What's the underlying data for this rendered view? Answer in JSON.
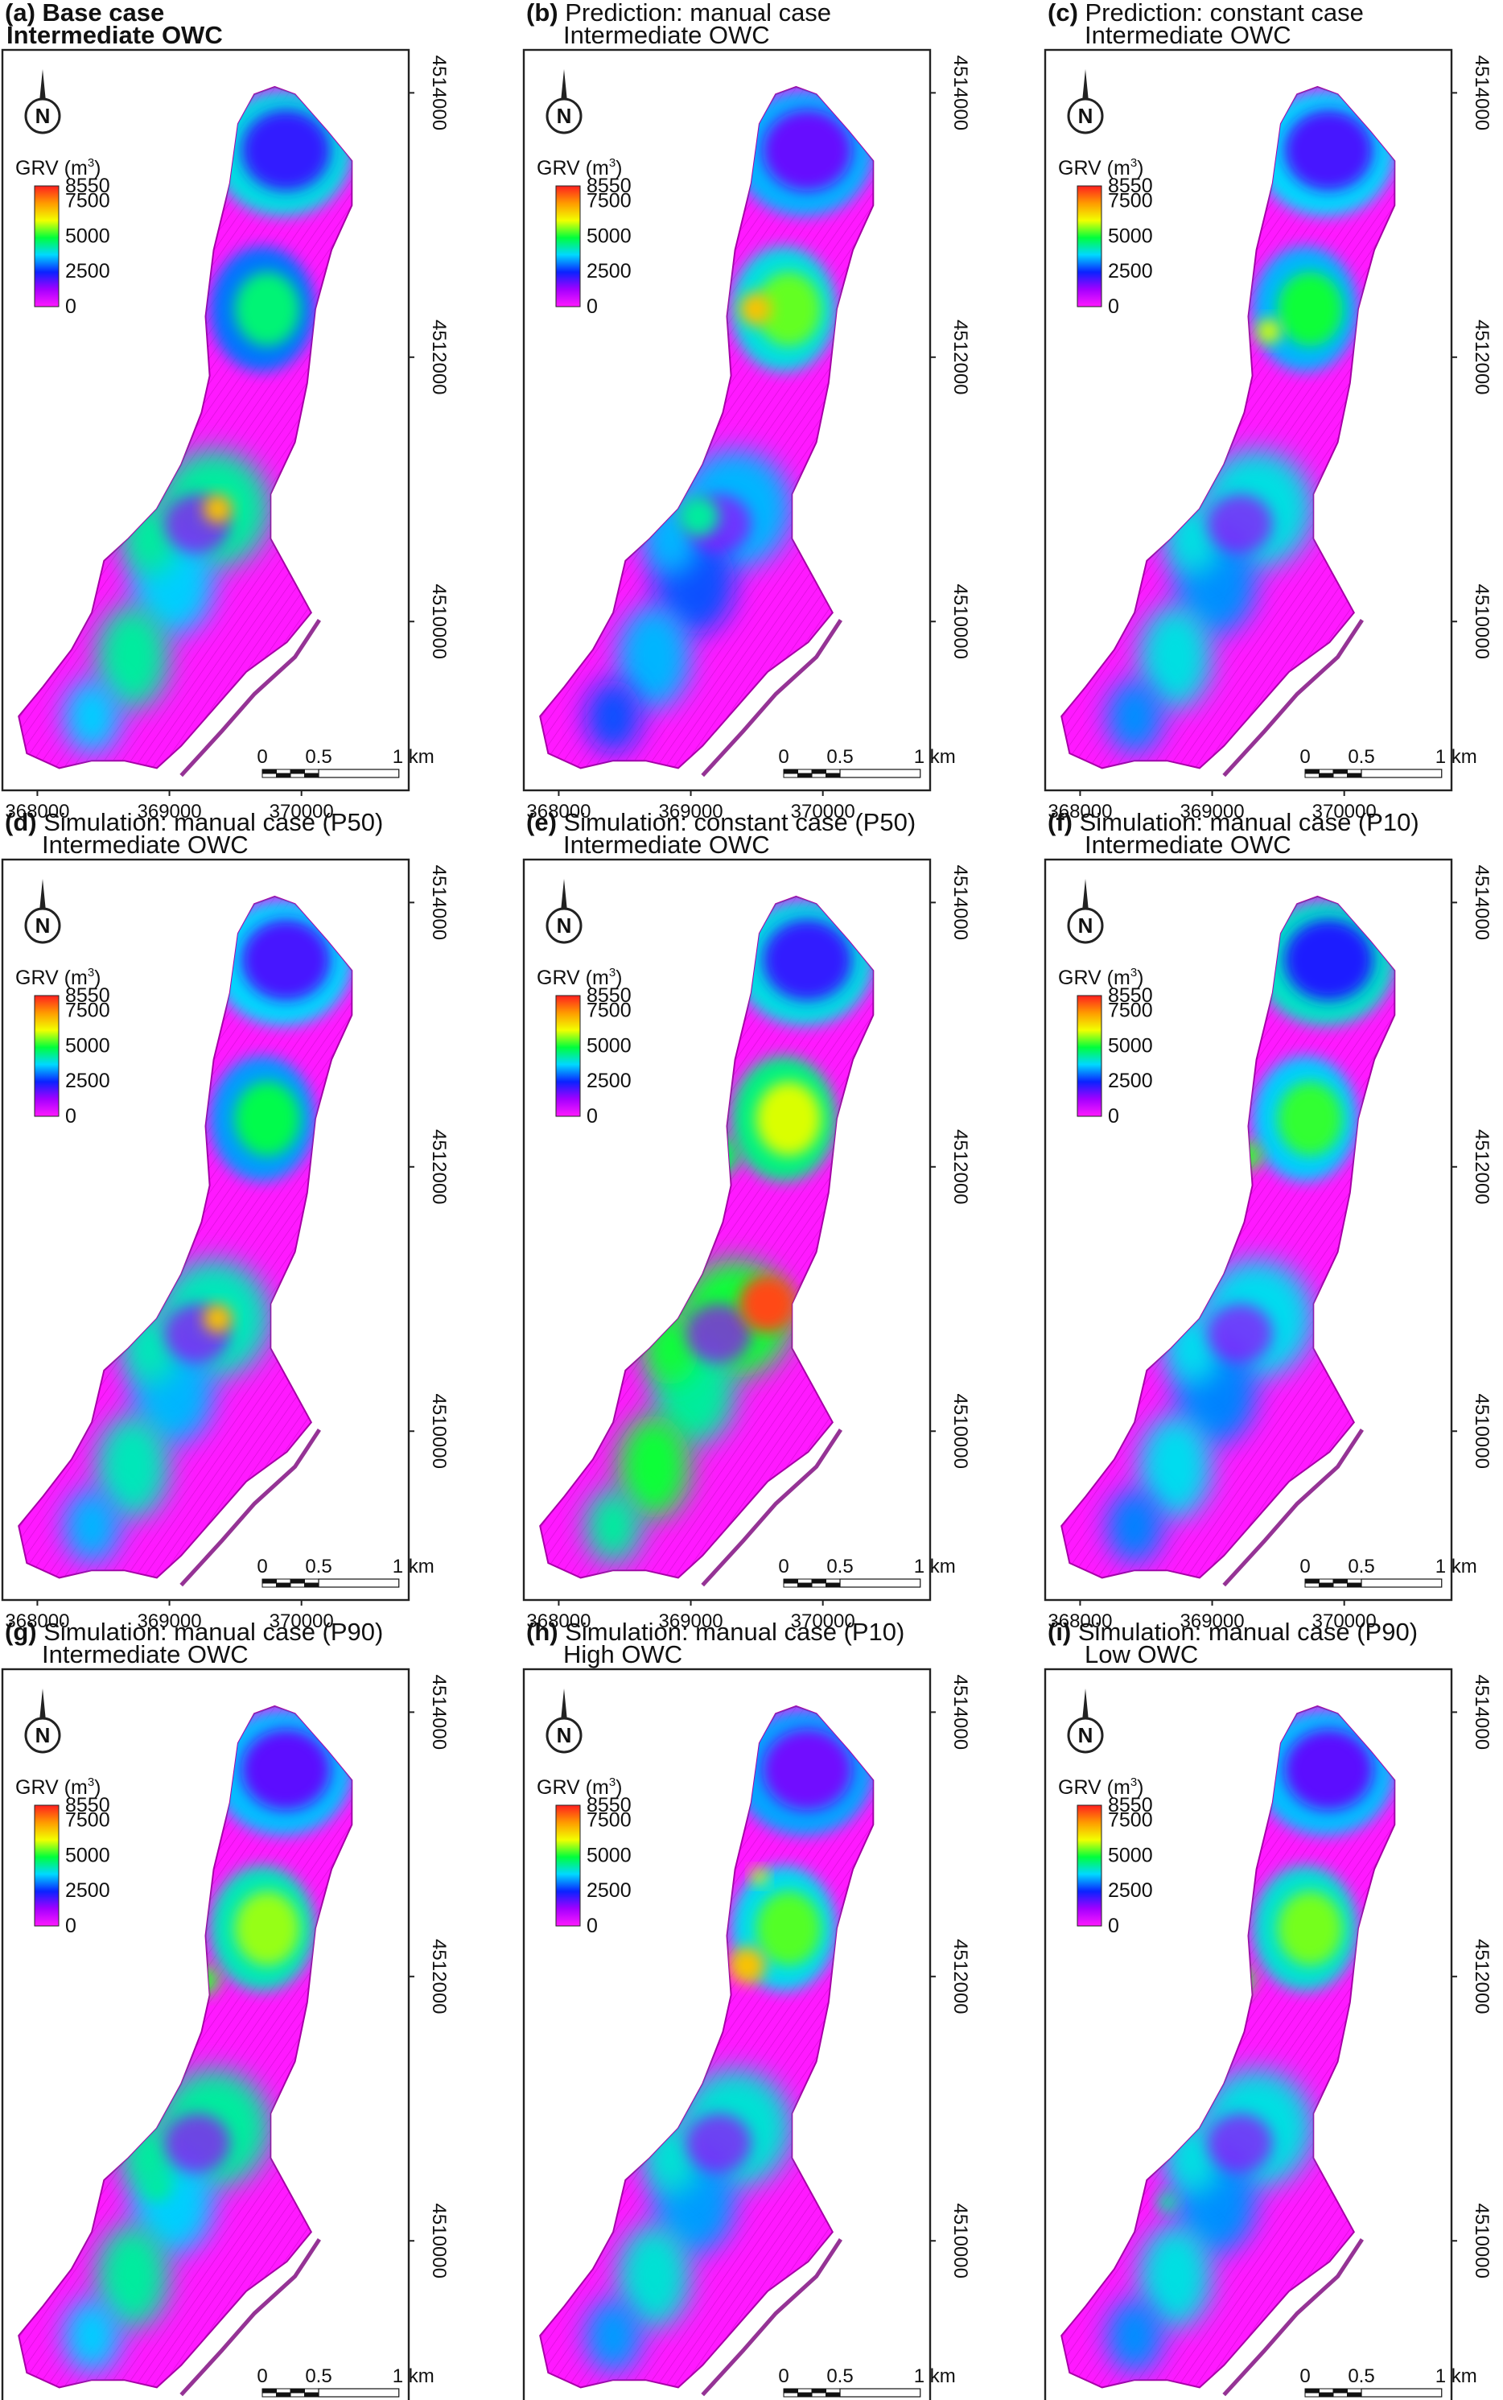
{
  "figure": {
    "legend": {
      "title": "GRV (m",
      "title_sup": "3",
      "title_close": ")",
      "ticks": [
        8550,
        7500,
        5000,
        2500,
        0
      ],
      "colors": [
        "#ff1f1f",
        "#ff9a00",
        "#f2ff00",
        "#00ff3c",
        "#00d9ff",
        "#0a23ff",
        "#a300ff",
        "#ff19ff"
      ]
    },
    "x_ticks": [
      "368000",
      "369000",
      "370000"
    ],
    "y_ticks": [
      "4514000",
      "4512000",
      "4510000"
    ],
    "scalebar": {
      "labels": [
        "0",
        "0.5",
        "1 km"
      ]
    },
    "north": "N",
    "colors": {
      "background_field": "#ff19ff",
      "field_edge": "#a700a7"
    }
  },
  "panels": [
    {
      "id": "a",
      "letter": "(a)",
      "line1": "Base case",
      "line2": "Intermediate OWC",
      "bold_all": true,
      "bodies": {
        "north": 0.3,
        "mid": 0.45,
        "south": 0.5
      },
      "spots": [
        [
          0.13,
          0.76,
          0.09,
          0.6
        ],
        [
          0.53,
          0.62,
          0.07,
          0.8
        ]
      ]
    },
    {
      "id": "b",
      "letter": "(b)",
      "line1": "Prediction: manual case",
      "line2": "Intermediate OWC",
      "bold_all": false,
      "bodies": {
        "north": 0.25,
        "mid": 0.55,
        "south": 0.4
      },
      "spots": [
        [
          0.57,
          0.35,
          0.08,
          0.8
        ],
        [
          0.43,
          0.63,
          0.1,
          0.5
        ]
      ]
    },
    {
      "id": "c",
      "letter": "(c)",
      "line1": "Prediction: constant case",
      "line2": "Intermediate OWC",
      "bold_all": false,
      "bodies": {
        "north": 0.28,
        "mid": 0.5,
        "south": 0.45
      },
      "spots": [
        [
          0.55,
          0.38,
          0.06,
          0.7
        ],
        [
          0.35,
          0.33,
          0.05,
          0.5
        ]
      ]
    },
    {
      "id": "d",
      "letter": "(d)",
      "line1": "Simulation: manual case (P50)",
      "line2": "Intermediate OWC",
      "bold_all": false,
      "bodies": {
        "north": 0.28,
        "mid": 0.48,
        "south": 0.48
      },
      "spots": [
        [
          0.13,
          0.76,
          0.09,
          0.6
        ],
        [
          0.53,
          0.62,
          0.07,
          0.8
        ]
      ]
    },
    {
      "id": "e",
      "letter": "(e)",
      "line1": "Simulation: constant case (P50)",
      "line2": "Intermediate OWC",
      "bold_all": false,
      "bodies": {
        "north": 0.3,
        "mid": 0.62,
        "south": 0.58
      },
      "spots": [
        [
          0.6,
          0.6,
          0.14,
          0.95
        ],
        [
          0.48,
          0.4,
          0.1,
          0.55
        ]
      ]
    },
    {
      "id": "f",
      "letter": "(f)",
      "line1": "Simulation: manual case (P10)",
      "line2": "Intermediate OWC",
      "bold_all": false,
      "bodies": {
        "north": 0.32,
        "mid": 0.52,
        "south": 0.44
      },
      "spots": [
        [
          0.5,
          0.4,
          0.07,
          0.6
        ],
        [
          0.36,
          0.22,
          0.06,
          0.6
        ]
      ]
    },
    {
      "id": "g",
      "letter": "(g)",
      "line1": "Simulation: manual case (P90)",
      "line2": "Intermediate OWC",
      "bold_all": false,
      "bodies": {
        "north": 0.26,
        "mid": 0.58,
        "south": 0.5
      },
      "spots": [
        [
          0.5,
          0.42,
          0.07,
          0.6
        ],
        [
          0.38,
          0.7,
          0.06,
          0.5
        ]
      ]
    },
    {
      "id": "h",
      "letter": "(h)",
      "line1": "Simulation: manual case (P10)",
      "line2": "High OWC",
      "bold_all": false,
      "bodies": {
        "north": 0.24,
        "mid": 0.54,
        "south": 0.46
      },
      "spots": [
        [
          0.55,
          0.4,
          0.09,
          0.8
        ],
        [
          0.58,
          0.28,
          0.04,
          0.7
        ]
      ]
    },
    {
      "id": "i",
      "letter": "(i)",
      "line1": "Simulation: manual case (P90)",
      "line2": "Low OWC",
      "bold_all": false,
      "bodies": {
        "north": 0.26,
        "mid": 0.56,
        "south": 0.45
      },
      "spots": [
        [
          0.48,
          0.42,
          0.07,
          0.6
        ],
        [
          0.3,
          0.72,
          0.05,
          0.5
        ]
      ]
    }
  ]
}
